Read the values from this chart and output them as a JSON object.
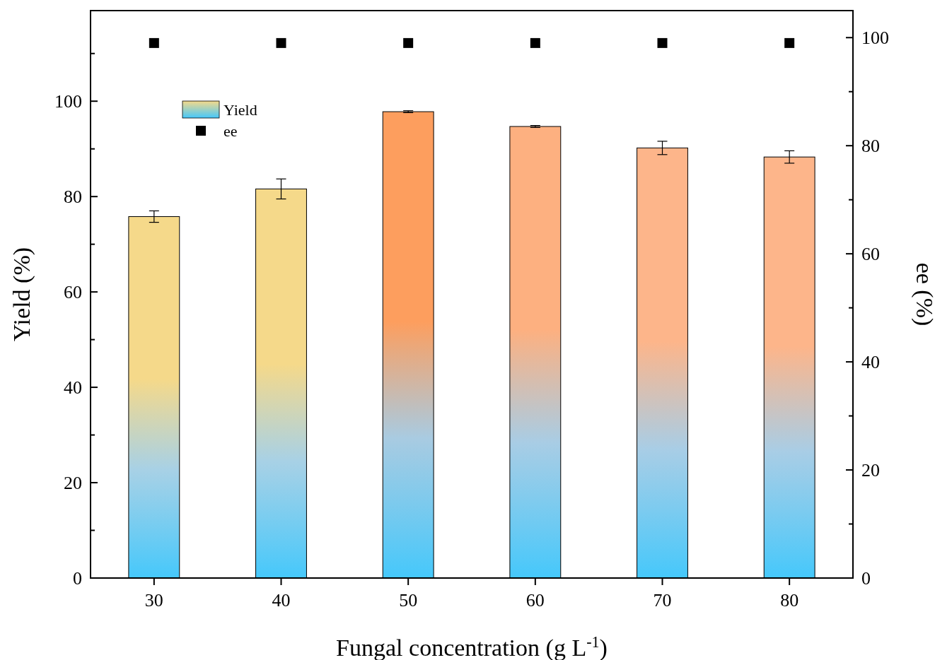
{
  "chart_data": {
    "type": "bar",
    "xlabel": "Fungal concentration (g L$^{-1}$)",
    "ylabel": "Yield (%)",
    "y2label": "ee (%)",
    "categories": [
      "30",
      "40",
      "50",
      "60",
      "70",
      "80"
    ],
    "series": [
      {
        "name": "Yield",
        "colors": [
          "#f5d98a",
          "#f5d98a",
          "#fd9e5e",
          "#fdb080",
          "#fdb58a",
          "#fdb58a"
        ],
        "values": [
          75.8,
          81.6,
          97.8,
          94.7,
          90.2,
          88.3
        ],
        "errors": [
          1.2,
          2.1,
          0.2,
          0.2,
          1.4,
          1.3
        ]
      },
      {
        "name": "ee",
        "type": "scatter",
        "axis": "y2",
        "color": "#000000",
        "marker": "square",
        "values": [
          99,
          99,
          99,
          99,
          99,
          99
        ]
      }
    ],
    "ylim": [
      0,
      119
    ],
    "yticks": [
      0,
      {
        "value": 10,
        "label": null
      },
      20,
      {
        "value": 30,
        "label": null
      },
      40,
      {
        "value": 50,
        "label": null
      },
      60,
      {
        "value": 70,
        "label": null
      },
      80,
      {
        "value": 90,
        "label": null
      },
      100,
      {
        "value": 110,
        "label": null
      }
    ],
    "y2lim": [
      0,
      105
    ],
    "y2ticks": [
      0,
      {
        "value": 10,
        "label": null
      },
      20,
      {
        "value": 30,
        "label": null
      },
      40,
      {
        "value": 50,
        "label": null
      },
      60,
      {
        "value": 70,
        "label": null
      },
      80,
      {
        "value": 90,
        "label": null
      },
      100
    ],
    "legend": "top left",
    "grid": false
  }
}
